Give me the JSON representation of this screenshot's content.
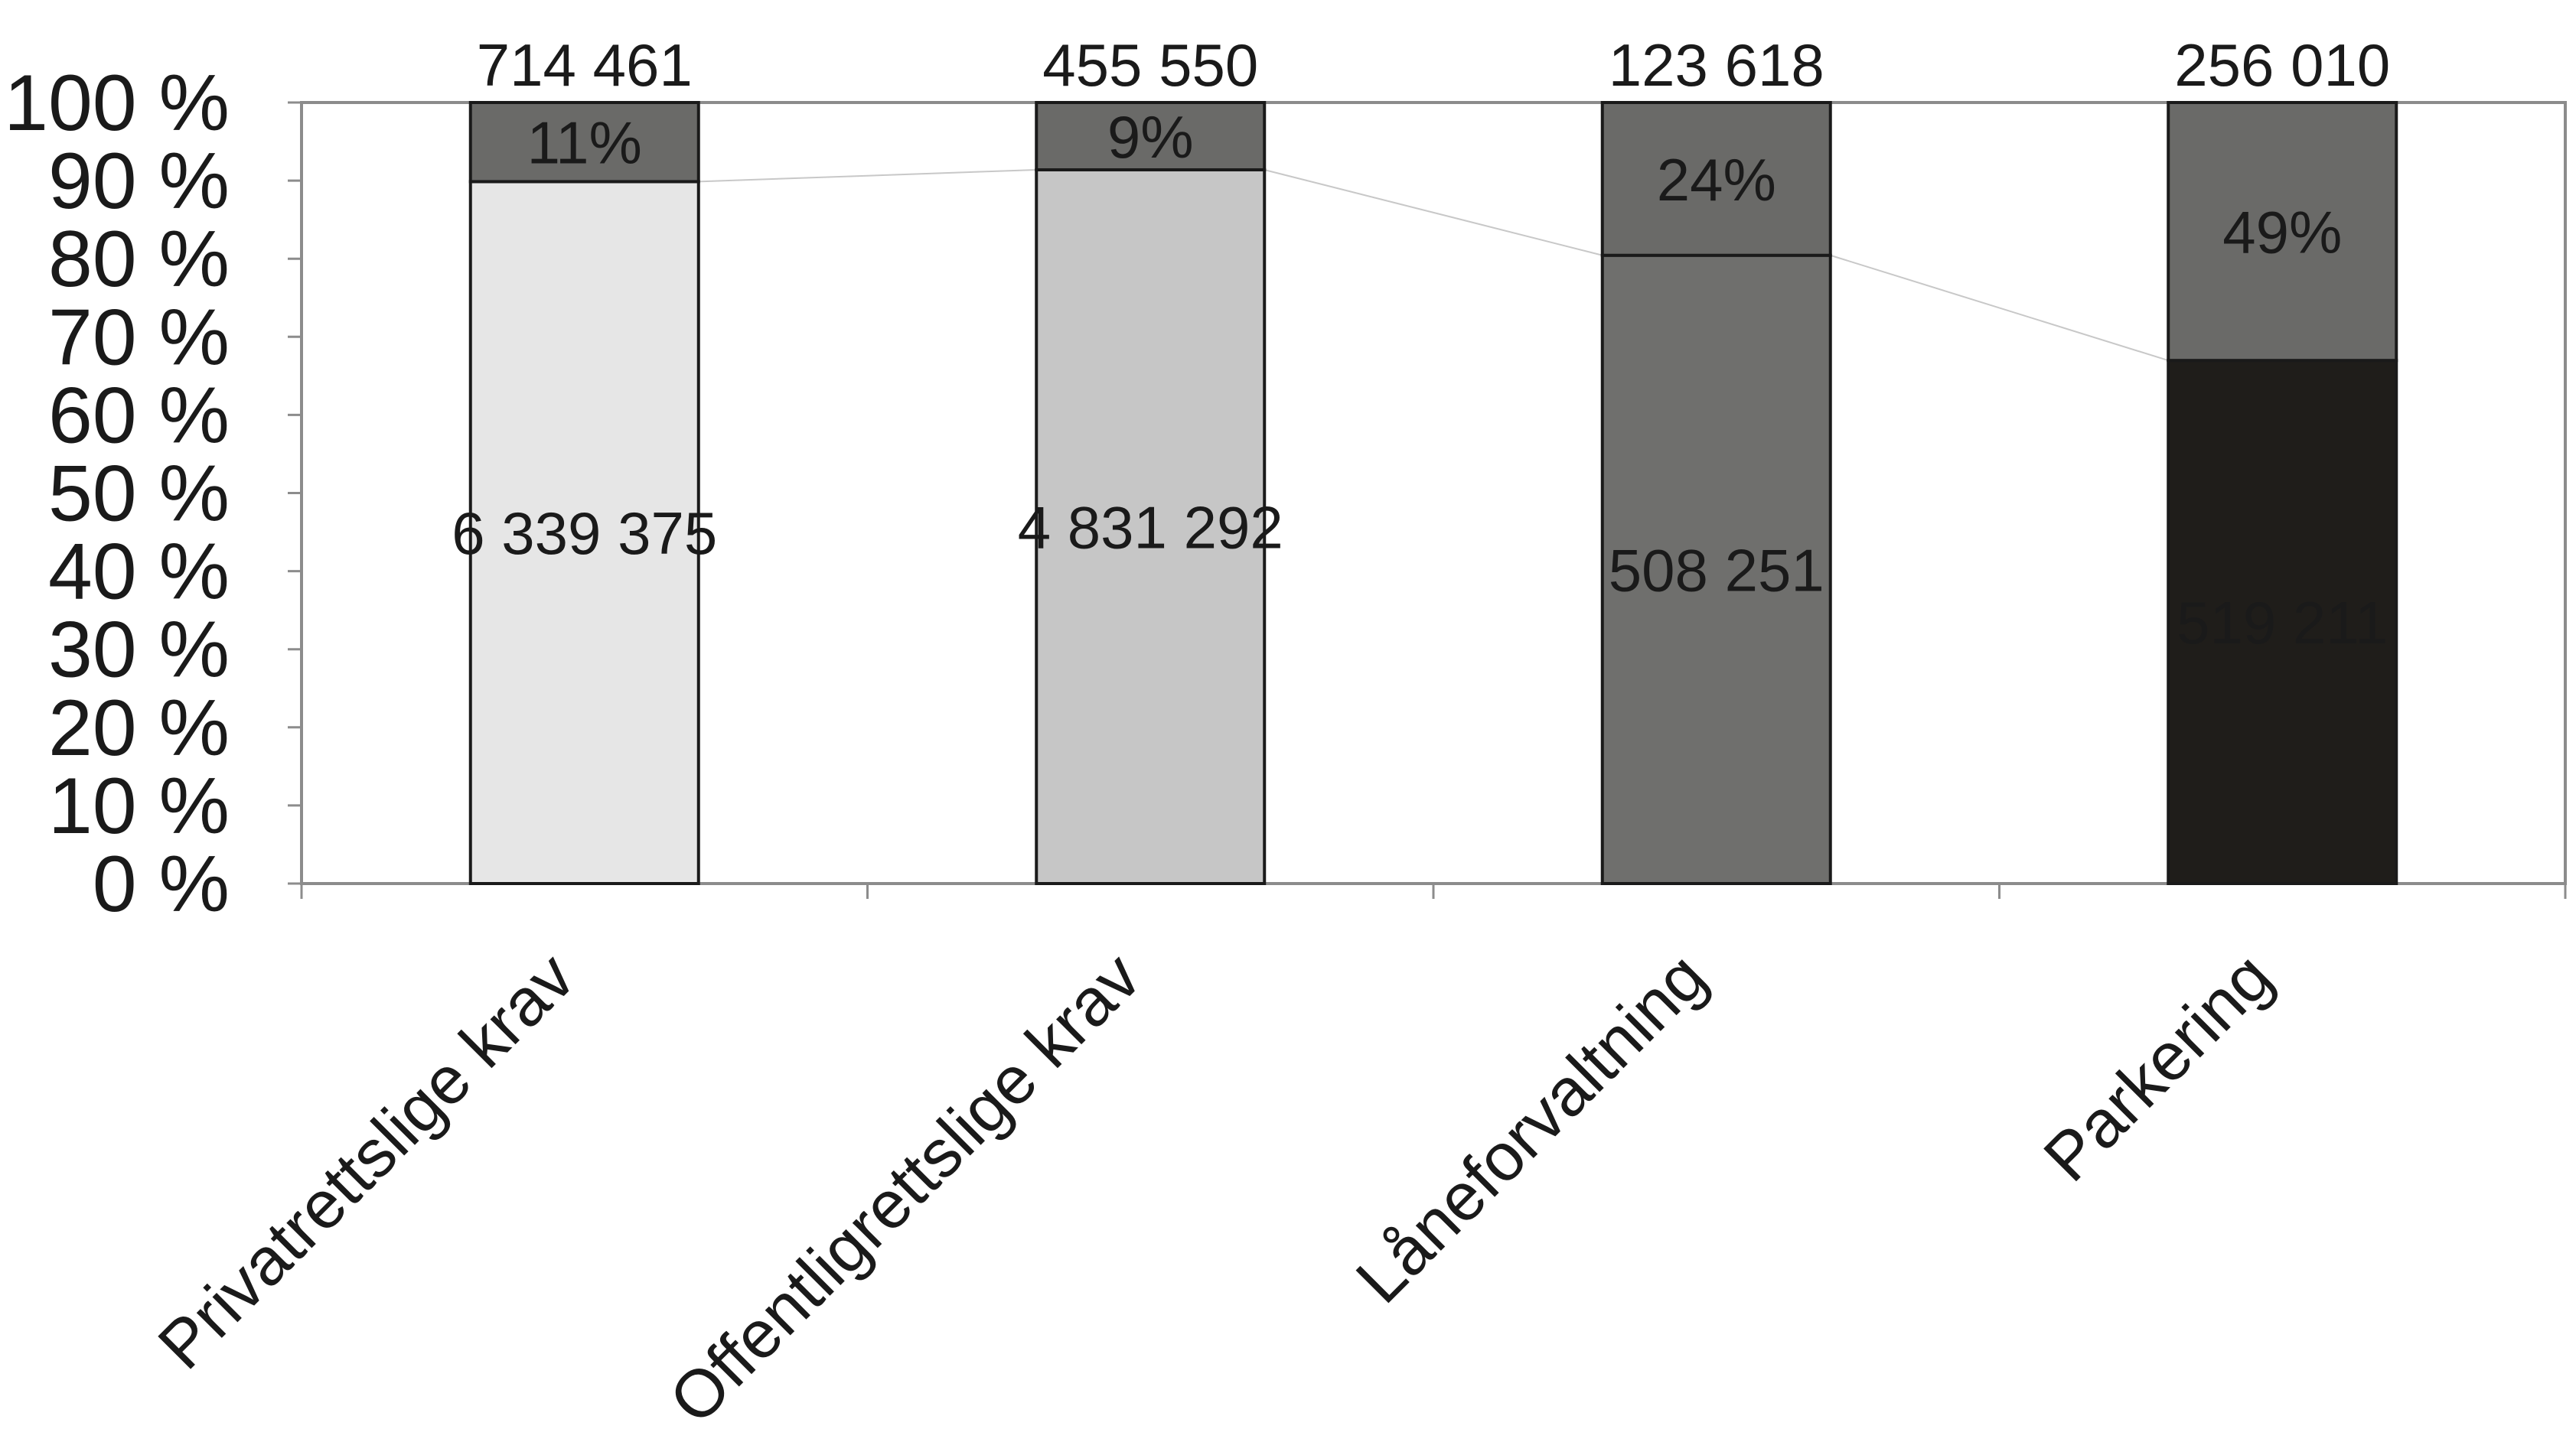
{
  "chart_data": {
    "type": "bar",
    "stacked": "percent",
    "categories": [
      "Privatrettslige krav",
      "Offentligrettslige krav",
      "Låneforvaltning",
      "Parkering"
    ],
    "series": [
      {
        "values": [
          6339375,
          4831292,
          508251,
          519211
        ],
        "value_labels": [
          "6 339 375",
          "4 831 292",
          "508 251",
          "519 211"
        ],
        "colors": [
          "#e6e6e6",
          "#c6c6c6",
          "#6f6f6d",
          "#1f1d1a"
        ],
        "label_colors": [
          "#1a1a1a",
          "#1a1a1a",
          "#1a1a1a",
          "#ffffff"
        ]
      },
      {
        "values": [
          714461,
          455550,
          123618,
          256010
        ],
        "value_labels": [
          "714 461",
          "455 550",
          "123 618",
          "256 010"
        ],
        "percent_labels": [
          "11%",
          "9%",
          "24%",
          "49%"
        ],
        "colors": [
          "#6a6a68",
          "#6a6a68",
          "#6a6a68",
          "#6a6a68"
        ]
      }
    ],
    "y_ticks": [
      "0 %",
      "10 %",
      "20 %",
      "30 %",
      "40 %",
      "50 %",
      "60 %",
      "70 %",
      "80 %",
      "90 %",
      "100 %"
    ],
    "ylim": [
      0,
      100
    ],
    "grid": false,
    "series_lines": true,
    "plot_border_color": "#8c8c8c"
  }
}
